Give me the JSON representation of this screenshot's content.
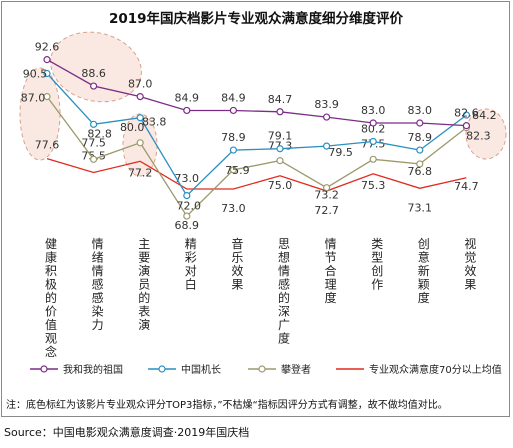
{
  "chart_data": {
    "type": "line",
    "title": "2019年国庆档影片专业观众满意度细分维度评价",
    "categories": [
      "健康积极的价值观念",
      "情绪情感感染力",
      "主要演员的表演",
      "精彩对白",
      "音乐效果",
      "思想情感的深广度",
      "情节合理度",
      "类型创作",
      "创意新颖度",
      "视觉效果"
    ],
    "series": [
      {
        "name": "我和我的祖国",
        "color": "#7b2c86",
        "values": [
          92.6,
          88.6,
          87.0,
          84.9,
          84.9,
          84.7,
          83.9,
          83.0,
          83.0,
          82.6
        ],
        "labels": [
          "92.6",
          "88.6",
          "87.0",
          "84.9",
          "84.9",
          "84.7",
          "83.9",
          "83.0",
          "83.0",
          "82.6"
        ]
      },
      {
        "name": "中国机长",
        "color": "#2a8fc1",
        "values": [
          90.5,
          82.8,
          83.8,
          72.0,
          78.9,
          79.1,
          79.5,
          80.2,
          78.9,
          84.2
        ],
        "labels": [
          "90.5",
          "82.8",
          "83.8",
          "72.0",
          "78.9",
          "79.1",
          "79.5",
          "80.2",
          "78.9",
          "84.2"
        ]
      },
      {
        "name": "攀登者",
        "color": "#9c9a6b",
        "values": [
          87.0,
          77.5,
          80.0,
          68.9,
          75.9,
          77.3,
          73.2,
          77.5,
          76.8,
          82.3
        ],
        "labels": [
          "87.0",
          "77.5",
          "80.0",
          "68.9",
          "75.9",
          "77.3",
          "73.2",
          "77.5",
          "76.8",
          "82.3"
        ]
      },
      {
        "name": "专业观众满意度70分以上均值",
        "color": "#e02a1f",
        "values": [
          77.6,
          75.5,
          77.2,
          73.0,
          73.0,
          75.0,
          72.7,
          75.3,
          73.1,
          74.7
        ],
        "labels": [
          "77.6",
          "75.5",
          "77.2",
          "73.0",
          "73.0",
          "75.0",
          "72.7",
          "75.3",
          "73.1",
          "74.7"
        ]
      }
    ],
    "legend_position": "bottom",
    "grid": false
  },
  "note": "注：底色标红为该影片专业观众评分TOP3指标，”不枯燥“指标因评分方式有调整，故不做均值对比。",
  "source": "Source：中国电影观众满意度调查·2019年国庆档"
}
